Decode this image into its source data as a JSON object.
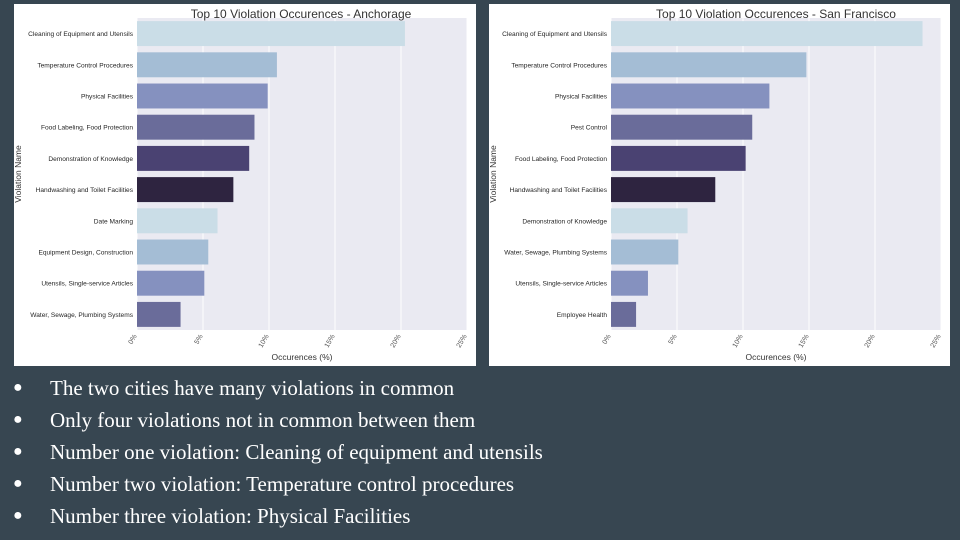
{
  "colors": {
    "background": "#374651",
    "plot_bg": "#eaeaf2",
    "palette": [
      "#cadde7",
      "#a4bdd5",
      "#8591bf",
      "#6a6c9a",
      "#4a4272",
      "#2e2440"
    ]
  },
  "chart_data": [
    {
      "type": "bar",
      "orientation": "horizontal",
      "title": "Top 10 Violation Occurences - Anchorage",
      "xlabel": "Occurences (%)",
      "ylabel": "Violation Name",
      "xlim": [
        0,
        25
      ],
      "xticks": [
        "0%",
        "5%",
        "10%",
        "15%",
        "20%",
        "25%"
      ],
      "grid": true,
      "categories": [
        "Cleaning of Equipment and Utensils",
        "Temperature Control Procedures",
        "Physical Facilities",
        "Food Labeling, Food Protection",
        "Demonstration of Knowledge",
        "Handwashing and Toilet Facilities",
        "Date Marking",
        "Equipment Design, Construction",
        "Utensils, Single-service Articles",
        "Water, Sewage, Plumbing Systems"
      ],
      "values": [
        20.3,
        10.6,
        9.9,
        8.9,
        8.5,
        7.3,
        6.1,
        5.4,
        5.1,
        3.3
      ]
    },
    {
      "type": "bar",
      "orientation": "horizontal",
      "title": "Top 10 Violation Occurences - San Francisco",
      "xlabel": "Occurences (%)",
      "ylabel": "Violation Name",
      "xlim": [
        0,
        25
      ],
      "xticks": [
        "0%",
        "5%",
        "10%",
        "15%",
        "20%",
        "25%"
      ],
      "grid": true,
      "categories": [
        "Cleaning of Equipment and Utensils",
        "Temperature Control Procedures",
        "Physical Facilities",
        "Pest Control",
        "Food Labeling, Food Protection",
        "Handwashing and Toilet Facilities",
        "Demonstration of Knowledge",
        "Water, Sewage, Plumbing Systems",
        "Utensils, Single-service Articles",
        "Employee Health"
      ],
      "values": [
        23.6,
        14.8,
        12.0,
        10.7,
        10.2,
        7.9,
        5.8,
        5.1,
        2.8,
        1.9
      ]
    }
  ],
  "bullets": [
    "The two cities have many violations in common",
    "Only four violations not in common between them",
    "Number one violation: Cleaning of equipment and utensils",
    "Number two violation: Temperature control procedures",
    "Number three violation: Physical Facilities"
  ],
  "bullet_glyph": "●"
}
